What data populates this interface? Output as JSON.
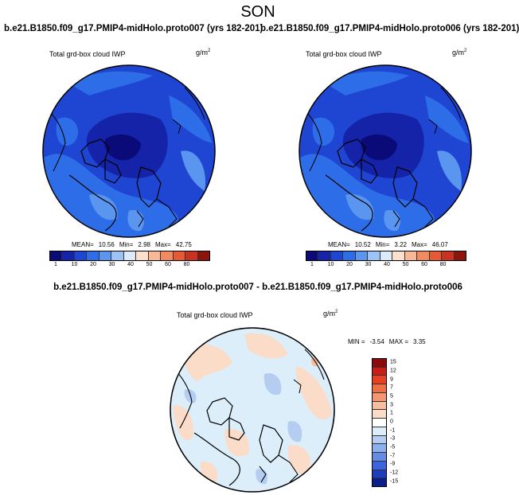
{
  "figure": {
    "season": "SON",
    "variable_label": "Total grd-box cloud IWP",
    "units_base": "g/m",
    "units_exp": "2"
  },
  "panels": [
    {
      "run_title": "b.e21.B1850.f09_g17.PMIP4-midHolo.proto007 (yrs 182-201)",
      "mean_label": "MEAN=",
      "mean": "10.56",
      "min_label": "Min=",
      "min": "2.98",
      "max_label": "Max=",
      "max": "42.75"
    },
    {
      "run_title": "b.e21.B1850.f09_g17.PMIP4-midHolo.proto006 (yrs 182-201)",
      "mean_label": "MEAN=",
      "mean": "10.52",
      "min_label": "Min=",
      "min": "3.22",
      "max_label": "Max=",
      "max": "46.07"
    }
  ],
  "abs_colorbar": {
    "colors": [
      "#0a0a78",
      "#1423a8",
      "#1e46d2",
      "#2d6ee8",
      "#5a96f0",
      "#9cc3f5",
      "#dcebfa",
      "#fde0cc",
      "#f9b894",
      "#f28a60",
      "#e45a34",
      "#c8321e",
      "#8c140a"
    ],
    "ticks": [
      "1",
      "10",
      "20",
      "30",
      "40",
      "50",
      "60",
      "80"
    ]
  },
  "diff": {
    "title": "b.e21.B1850.f09_g17.PMIP4-midHolo.proto007 - b.e21.B1850.f09_g17.PMIP4-midHolo.proto006",
    "min_label": "MIN =",
    "min": "-3.54",
    "max_label": "MAX =",
    "max": "3.35",
    "colorbar": {
      "colors": [
        "#8c0a0a",
        "#c81e14",
        "#e64123",
        "#f06e41",
        "#f59673",
        "#f8bc9e",
        "#fbdcc8",
        "#ffffff",
        "#dceefa",
        "#b4cdf0",
        "#8cb0eb",
        "#648ce6",
        "#3c64dc",
        "#1e3cbe",
        "#0a1e8c"
      ],
      "ticks": [
        "15",
        "12",
        "9",
        "7",
        "5",
        "3",
        "1",
        "0",
        "-1",
        "-3",
        "-5",
        "-7",
        "-9",
        "-12",
        "-15"
      ]
    }
  },
  "chart_data": {
    "type": "heatmap",
    "title": "SON",
    "projection": "north polar stereographic",
    "variable": "Total grd-box cloud IWP",
    "units": "g/m^2",
    "panels": [
      {
        "name": "proto007 (yrs 182-201)",
        "mean": 10.56,
        "min": 2.98,
        "max": 42.75,
        "levels": [
          1,
          10,
          20,
          30,
          40,
          50,
          60,
          80
        ]
      },
      {
        "name": "proto006 (yrs 182-201)",
        "mean": 10.52,
        "min": 3.22,
        "max": 46.07,
        "levels": [
          1,
          10,
          20,
          30,
          40,
          50,
          60,
          80
        ]
      },
      {
        "name": "proto007 - proto006",
        "min": -3.54,
        "max": 3.35,
        "levels": [
          -15,
          -12,
          -9,
          -7,
          -5,
          -3,
          -1,
          0,
          1,
          3,
          5,
          7,
          9,
          12,
          15
        ]
      }
    ]
  }
}
